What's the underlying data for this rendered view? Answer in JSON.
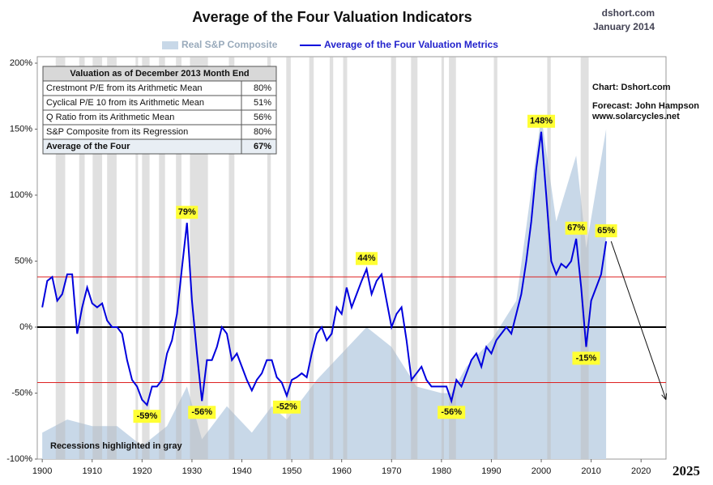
{
  "chart_data": {
    "type": "line",
    "title": "Average of the Four Valuation Indicators",
    "source": "dshort.com",
    "date": "January 2014",
    "credits": [
      "Chart: Dshort.com",
      "Forecast: John Hampson",
      "www.solarcycles.net"
    ],
    "note": "Recessions highlighted in gray",
    "xlim": [
      1899,
      2025
    ],
    "ylim": [
      -100,
      200
    ],
    "xticks": [
      1900,
      1910,
      1920,
      1930,
      1940,
      1950,
      1960,
      1970,
      1980,
      1990,
      2000,
      2010,
      2020
    ],
    "yticks": [
      {
        "value": -100,
        "label": "-100%"
      },
      {
        "value": -50,
        "label": "-50%"
      },
      {
        "value": 0,
        "label": "0%"
      },
      {
        "value": 50,
        "label": "50%"
      },
      {
        "value": 100,
        "label": "100%"
      },
      {
        "value": 150,
        "label": "150%"
      },
      {
        "value": 200,
        "label": "200%"
      }
    ],
    "hlines": [
      38,
      -42
    ],
    "recessions": [
      [
        1902.7,
        1904.6
      ],
      [
        1907.4,
        1908.5
      ],
      [
        1910.1,
        1912.0
      ],
      [
        1913.0,
        1914.9
      ],
      [
        1918.7,
        1919.2
      ],
      [
        1920.0,
        1921.5
      ],
      [
        1923.4,
        1924.6
      ],
      [
        1926.8,
        1927.9
      ],
      [
        1929.6,
        1933.2
      ],
      [
        1937.4,
        1938.5
      ],
      [
        1945.1,
        1945.8
      ],
      [
        1948.9,
        1949.8
      ],
      [
        1953.5,
        1954.4
      ],
      [
        1957.6,
        1958.3
      ],
      [
        1960.3,
        1961.1
      ],
      [
        1969.9,
        1970.9
      ],
      [
        1973.9,
        1975.2
      ],
      [
        1980.0,
        1980.5
      ],
      [
        1981.5,
        1982.9
      ],
      [
        1990.5,
        1991.2
      ],
      [
        2001.2,
        2001.9
      ],
      [
        2007.9,
        2009.5
      ]
    ],
    "series": [
      {
        "name": "Real S&P Composite",
        "color": "#c8d8e8",
        "kind": "area",
        "x": [
          1900,
          1905,
          1910,
          1915,
          1920,
          1925,
          1929,
          1932,
          1937,
          1942,
          1946,
          1949,
          1955,
          1960,
          1965,
          1970,
          1975,
          1980,
          1982,
          1985,
          1990,
          1995,
          2000,
          2003,
          2007,
          2009,
          2013
        ],
        "values": [
          -80,
          -70,
          -75,
          -75,
          -90,
          -75,
          -45,
          -85,
          -60,
          -80,
          -60,
          -70,
          -40,
          -20,
          0,
          -15,
          -45,
          -50,
          -50,
          -30,
          -10,
          20,
          160,
          80,
          130,
          60,
          150
        ]
      },
      {
        "name": "Average of the Four Valuation Metrics",
        "color": "#0000dd",
        "kind": "line",
        "x": [
          1900,
          1901,
          1902,
          1903,
          1904,
          1905,
          1906,
          1907,
          1908,
          1909,
          1910,
          1911,
          1912,
          1913,
          1914,
          1915,
          1916,
          1917,
          1918,
          1919,
          1920,
          1921,
          1922,
          1923,
          1924,
          1925,
          1926,
          1927,
          1928,
          1929,
          1930,
          1931,
          1932,
          1933,
          1934,
          1935,
          1936,
          1937,
          1938,
          1939,
          1940,
          1941,
          1942,
          1943,
          1944,
          1945,
          1946,
          1947,
          1948,
          1949,
          1950,
          1951,
          1952,
          1953,
          1954,
          1955,
          1956,
          1957,
          1958,
          1959,
          1960,
          1961,
          1962,
          1963,
          1964,
          1965,
          1966,
          1967,
          1968,
          1969,
          1970,
          1971,
          1972,
          1973,
          1974,
          1975,
          1976,
          1977,
          1978,
          1979,
          1980,
          1981,
          1982,
          1983,
          1984,
          1985,
          1986,
          1987,
          1988,
          1989,
          1990,
          1991,
          1992,
          1993,
          1994,
          1995,
          1996,
          1997,
          1998,
          1999,
          2000,
          2001,
          2002,
          2003,
          2004,
          2005,
          2006,
          2007,
          2008,
          2009,
          2010,
          2011,
          2012,
          2013
        ],
        "values": [
          15,
          35,
          38,
          20,
          25,
          40,
          40,
          -5,
          15,
          30,
          18,
          15,
          18,
          5,
          0,
          0,
          -5,
          -25,
          -40,
          -45,
          -55,
          -59,
          -45,
          -45,
          -40,
          -20,
          -10,
          10,
          45,
          79,
          20,
          -20,
          -56,
          -25,
          -25,
          -15,
          0,
          -5,
          -25,
          -20,
          -30,
          -40,
          -48,
          -40,
          -35,
          -25,
          -25,
          -38,
          -42,
          -52,
          -40,
          -38,
          -35,
          -38,
          -20,
          -5,
          0,
          -10,
          -5,
          15,
          10,
          30,
          15,
          25,
          35,
          44,
          25,
          35,
          40,
          20,
          0,
          10,
          15,
          -10,
          -40,
          -35,
          -30,
          -40,
          -45,
          -45,
          -45,
          -45,
          -56,
          -40,
          -45,
          -35,
          -25,
          -20,
          -30,
          -15,
          -20,
          -10,
          -5,
          0,
          -5,
          10,
          25,
          50,
          80,
          120,
          148,
          100,
          50,
          40,
          48,
          45,
          50,
          67,
          30,
          -15,
          20,
          30,
          40,
          65
        ]
      }
    ],
    "forecast": {
      "x": [
        2014,
        2025
      ],
      "values": [
        65,
        -55
      ],
      "label": "2025"
    },
    "annotations": [
      {
        "x": 1929,
        "value": 79,
        "label": "79%"
      },
      {
        "x": 1921,
        "value": -59,
        "label": "-59%"
      },
      {
        "x": 1932,
        "value": -56,
        "label": "-56%"
      },
      {
        "x": 1949,
        "value": -52,
        "label": "-52%"
      },
      {
        "x": 1965,
        "value": 44,
        "label": "44%"
      },
      {
        "x": 1982,
        "value": -56,
        "label": "-56%"
      },
      {
        "x": 2000,
        "value": 148,
        "label": "148%"
      },
      {
        "x": 2007,
        "value": 67,
        "label": "67%"
      },
      {
        "x": 2009,
        "value": -15,
        "label": "-15%"
      },
      {
        "x": 2013,
        "value": 65,
        "label": "65%"
      }
    ],
    "table": {
      "header": "Valuation as of December 2013 Month End",
      "rows": [
        [
          "Crestmont P/E from its Arithmetic Mean",
          "80%"
        ],
        [
          "Cyclical P/E 10 from its Arithmetic Mean",
          "51%"
        ],
        [
          "Q Ratio from its Arithmetic Mean",
          "56%"
        ],
        [
          "S&P Composite from its Regression",
          "80%"
        ],
        [
          "Average of the Four",
          "67%"
        ]
      ]
    }
  }
}
